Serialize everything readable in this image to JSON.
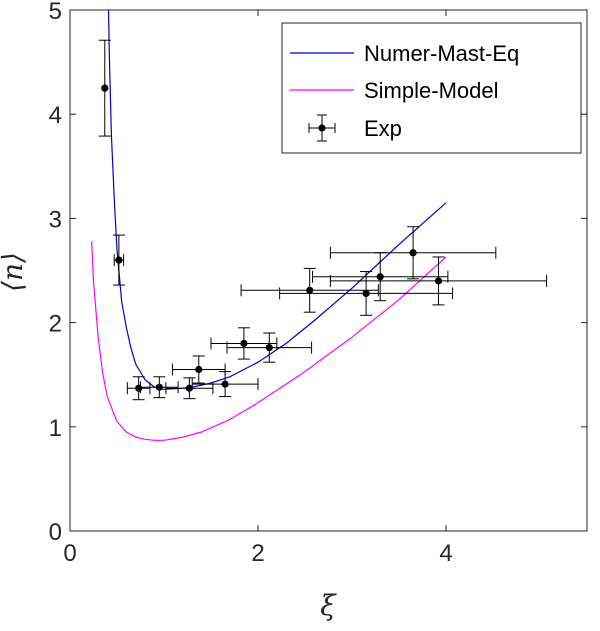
{
  "chart_data": {
    "type": "line",
    "title": "",
    "xlabel": "ξ",
    "ylabel": "⟨n⟩",
    "xlim": [
      0,
      5.5
    ],
    "ylim": [
      0,
      5
    ],
    "xticks": [
      0,
      2,
      4
    ],
    "xtick_labels": [
      "0",
      "2",
      "4"
    ],
    "yticks": [
      0,
      1,
      2,
      3,
      4,
      5
    ],
    "ytick_labels": [
      "0",
      "1",
      "2",
      "3",
      "4",
      "5"
    ],
    "grid": false,
    "legend_position": "top-right",
    "series": [
      {
        "name": "Numer-Mast-Eq",
        "type": "line",
        "color": "#0000cc",
        "x": [
          0.41,
          0.42,
          0.44,
          0.47,
          0.5,
          0.55,
          0.6,
          0.65,
          0.7,
          0.8,
          0.9,
          1.0,
          1.1,
          1.2,
          1.3,
          1.5,
          1.7,
          2.0,
          2.3,
          2.6,
          3.0,
          3.5,
          4.0
        ],
        "y": [
          5.0,
          4.5,
          3.8,
          3.2,
          2.7,
          2.2,
          1.95,
          1.75,
          1.6,
          1.45,
          1.38,
          1.36,
          1.365,
          1.37,
          1.38,
          1.42,
          1.48,
          1.62,
          1.8,
          2.02,
          2.33,
          2.75,
          3.15
        ]
      },
      {
        "name": "Simple-Model",
        "type": "line",
        "color": "#ff00ff",
        "x": [
          0.23,
          0.25,
          0.3,
          0.35,
          0.4,
          0.5,
          0.6,
          0.7,
          0.8,
          0.9,
          1.0,
          1.2,
          1.4,
          1.7,
          2.0,
          2.5,
          3.0,
          3.5,
          4.0
        ],
        "y": [
          2.78,
          2.4,
          1.85,
          1.5,
          1.28,
          1.05,
          0.95,
          0.9,
          0.88,
          0.87,
          0.87,
          0.9,
          0.95,
          1.07,
          1.23,
          1.53,
          1.86,
          2.22,
          2.63
        ]
      },
      {
        "name": "Exp",
        "type": "errorbar",
        "color": "#000000",
        "points": [
          {
            "x": 0.37,
            "y": 4.25,
            "yerr": 0.46,
            "xerr": 0.0
          },
          {
            "x": 0.52,
            "y": 2.6,
            "yerr": 0.24,
            "xerr": 0.05
          },
          {
            "x": 0.73,
            "y": 1.37,
            "yerr": 0.11,
            "xerr": 0.12
          },
          {
            "x": 0.95,
            "y": 1.38,
            "yerr": 0.1,
            "xerr": 0.2
          },
          {
            "x": 1.27,
            "y": 1.37,
            "yerr": 0.1,
            "xerr": 0.25
          },
          {
            "x": 1.37,
            "y": 1.55,
            "yerr": 0.13,
            "xerr": 0.28
          },
          {
            "x": 1.65,
            "y": 1.41,
            "yerr": 0.12,
            "xerr": 0.35
          },
          {
            "x": 1.85,
            "y": 1.8,
            "yerr": 0.15,
            "xerr": 0.35
          },
          {
            "x": 2.12,
            "y": 1.76,
            "yerr": 0.14,
            "xerr": 0.45
          },
          {
            "x": 2.55,
            "y": 2.31,
            "yerr": 0.21,
            "xerr": 0.73
          },
          {
            "x": 3.15,
            "y": 2.28,
            "yerr": 0.21,
            "xerr": 0.92
          },
          {
            "x": 3.3,
            "y": 2.44,
            "yerr": 0.23,
            "xerr": 0.72
          },
          {
            "x": 3.65,
            "y": 2.67,
            "yerr": 0.25,
            "xerr": 0.88
          },
          {
            "x": 3.92,
            "y": 2.4,
            "yerr": 0.23,
            "xerr": 1.15
          }
        ]
      }
    ]
  }
}
